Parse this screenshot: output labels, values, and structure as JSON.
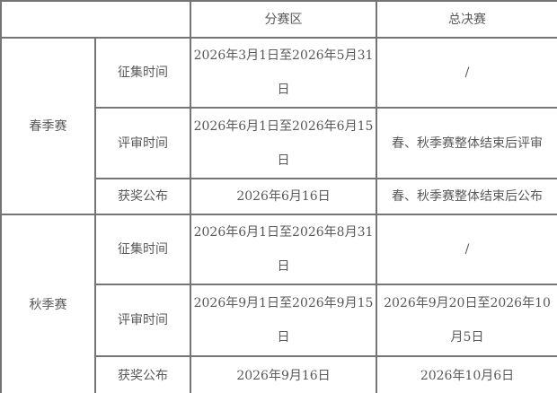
{
  "colors": {
    "border": "#757575",
    "text": "#595959",
    "background": "#ffffff"
  },
  "table": {
    "header": {
      "corner": "",
      "regional": "分赛区",
      "finals": "总决赛"
    },
    "sections": [
      {
        "name": "春季赛",
        "rows": [
          {
            "label": "征集时间",
            "regional": "2026年3月1日至2026年5月31日",
            "finals": "/"
          },
          {
            "label": "评审时间",
            "regional": "2026年6月1日至2026年6月15日",
            "finals": "春、秋季赛整体结束后评审"
          },
          {
            "label": "获奖公布",
            "regional": "2026年6月16日",
            "finals": "春、秋季赛整体结束后公布"
          }
        ]
      },
      {
        "name": "秋季赛",
        "rows": [
          {
            "label": "征集时间",
            "regional": "2026年6月1日至2026年8月31日",
            "finals": "/"
          },
          {
            "label": "评审时间",
            "regional": "2026年9月1日至2026年9月15日",
            "finals": "2026年9月20日至2026年10月5日"
          },
          {
            "label": "获奖公布",
            "regional": "2026年9月16日",
            "finals": "2026年10月6日"
          }
        ]
      }
    ]
  }
}
